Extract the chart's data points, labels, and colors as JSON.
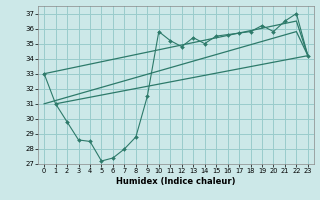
{
  "xlabel": "Humidex (Indice chaleur)",
  "bg_color": "#cce8e8",
  "grid_color": "#99cccc",
  "line_color": "#2d7a6a",
  "xlim": [
    -0.5,
    23.5
  ],
  "ylim": [
    27,
    37.5
  ],
  "xticks": [
    0,
    1,
    2,
    3,
    4,
    5,
    6,
    7,
    8,
    9,
    10,
    11,
    12,
    13,
    14,
    15,
    16,
    17,
    18,
    19,
    20,
    21,
    22,
    23
  ],
  "yticks": [
    27,
    28,
    29,
    30,
    31,
    32,
    33,
    34,
    35,
    36,
    37
  ],
  "line1_x": [
    0,
    1,
    2,
    3,
    4,
    5,
    6,
    7,
    8,
    9,
    10,
    11,
    12,
    13,
    14,
    15,
    16,
    17,
    18,
    19,
    20,
    21,
    22,
    23
  ],
  "line1_y": [
    33.0,
    31.0,
    29.8,
    28.6,
    28.5,
    27.2,
    27.4,
    28.0,
    28.8,
    31.5,
    35.8,
    35.2,
    34.8,
    35.4,
    35.0,
    35.5,
    35.6,
    35.7,
    35.8,
    36.2,
    35.8,
    36.5,
    37.0,
    34.2
  ],
  "line2_x": [
    0,
    22,
    23
  ],
  "line2_y": [
    33.0,
    36.5,
    34.2
  ],
  "line3_x": [
    0,
    22,
    23
  ],
  "line3_y": [
    31.0,
    35.8,
    34.2
  ],
  "line4_x": [
    1,
    23
  ],
  "line4_y": [
    31.0,
    34.2
  ]
}
